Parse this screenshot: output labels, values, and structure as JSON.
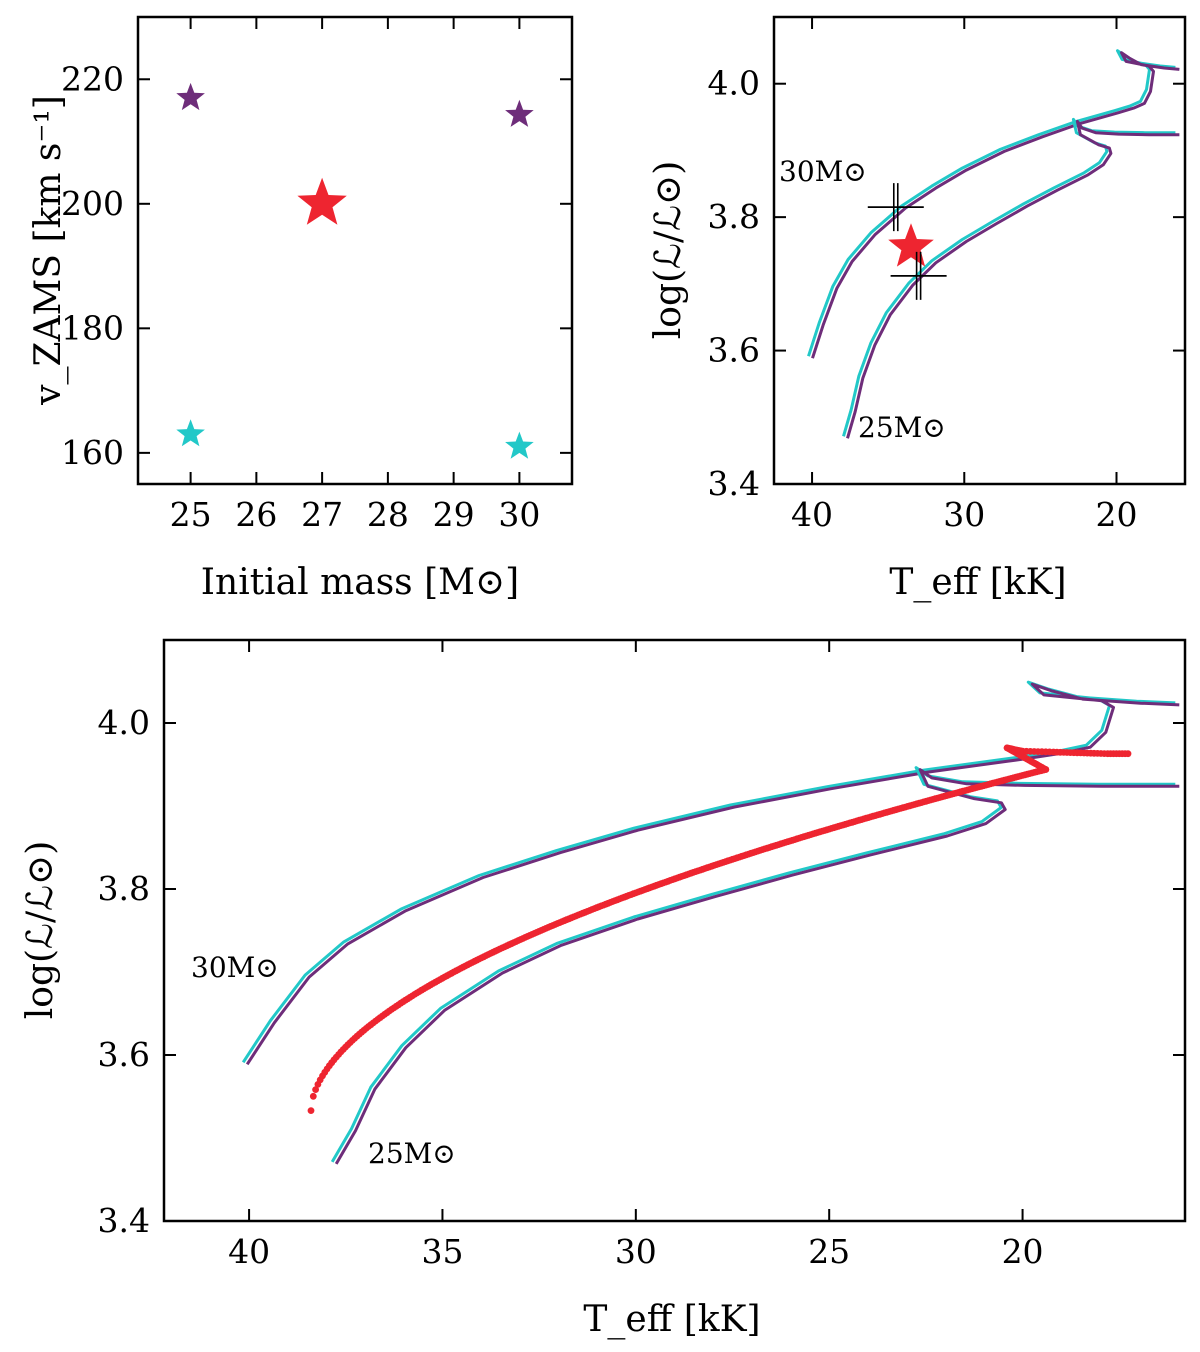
{
  "chart_data": [
    {
      "id": "panel-a",
      "type": "scatter",
      "title": "",
      "xlabel": "Initial mass [M⊙]",
      "ylabel": "v_ZAMS [km s⁻¹]",
      "xlim": [
        24.2,
        30.8
      ],
      "ylim": [
        155,
        230
      ],
      "xticks": [
        25,
        26,
        27,
        28,
        29,
        30
      ],
      "yticks": [
        160,
        180,
        200,
        220
      ],
      "series": [
        {
          "name": "purple models",
          "color": "#6e2d7a",
          "marker": "star",
          "size": "small",
          "points": [
            {
              "x": 25,
              "y": 217
            },
            {
              "x": 30,
              "y": 214.3
            }
          ]
        },
        {
          "name": "cyan models",
          "color": "#22c8c8",
          "marker": "star",
          "size": "small",
          "points": [
            {
              "x": 25,
              "y": 163
            },
            {
              "x": 30,
              "y": 161
            }
          ]
        },
        {
          "name": "interpolated",
          "color": "#ee2530",
          "marker": "star",
          "size": "large",
          "points": [
            {
              "x": 27,
              "y": 200
            }
          ]
        }
      ]
    },
    {
      "id": "panel-b",
      "type": "line",
      "title": "",
      "xlabel": "T_eff [kK]",
      "ylabel": "log(ℒ/ℒ⊙)",
      "xlim": [
        42.5,
        15.5
      ],
      "ylim": [
        3.4,
        4.1
      ],
      "xticks": [
        40,
        30,
        20
      ],
      "yticks": [
        3.4,
        3.6,
        3.8,
        4.0
      ],
      "annotations": [
        {
          "text": "30M⊙",
          "x": 41.8,
          "y": 3.855
        },
        {
          "text": "25M⊙",
          "x": 36.8,
          "y": 3.48
        }
      ],
      "observation": {
        "name": "star",
        "color": "#ee2530",
        "x": 33.5,
        "y": 3.755
      },
      "crosses": [
        {
          "x": 34.5,
          "y": 3.815
        },
        {
          "x": 33.0,
          "y": 3.712
        }
      ]
    },
    {
      "id": "panel-c",
      "type": "line",
      "title": "",
      "xlabel": "T_eff [kK]",
      "ylabel": "log(ℒ/ℒ⊙)",
      "xlim": [
        42.2,
        15.8
      ],
      "ylim": [
        3.4,
        4.1
      ],
      "xticks": [
        40,
        35,
        30,
        25,
        20
      ],
      "yticks": [
        3.4,
        3.6,
        3.8,
        4.0
      ],
      "annotations": [
        {
          "text": "30M⊙",
          "x": 41.9,
          "y": 3.705
        },
        {
          "text": "25M⊙",
          "x": 36.9,
          "y": 3.475
        }
      ],
      "interpolated_track": {
        "name": "interpolated 27M⊙",
        "color": "#ee2530",
        "from": [
          38.4,
          3.533
        ],
        "to": [
          19.4,
          3.944
        ],
        "points": 320
      }
    }
  ],
  "tracks": [
    {
      "name": "30M⊙ track",
      "mass": 30,
      "x": [
        40.1,
        39.4,
        38.5,
        37.5,
        36.0,
        34.0,
        32.0,
        30.0,
        27.5,
        25.0,
        22.5,
        20.0,
        19.0,
        18.3,
        17.9,
        17.7,
        18.0,
        19.5,
        19.8,
        19.3,
        18.5,
        17.0,
        16.0
      ],
      "y": [
        3.59,
        3.64,
        3.695,
        3.735,
        3.775,
        3.815,
        3.845,
        3.872,
        3.9,
        3.922,
        3.942,
        3.958,
        3.965,
        3.972,
        3.99,
        4.02,
        4.028,
        4.035,
        4.048,
        4.04,
        4.03,
        4.025,
        4.023
      ]
    },
    {
      "name": "25M⊙ track",
      "mass": 25,
      "x": [
        37.8,
        37.3,
        36.8,
        36.0,
        35.0,
        33.5,
        32.0,
        30.0,
        28.0,
        26.0,
        24.0,
        22.0,
        21.0,
        20.5,
        20.6,
        21.3,
        22.5,
        22.7,
        22.4,
        21.5,
        20.0,
        18.0,
        16.0
      ],
      "y": [
        3.47,
        3.51,
        3.56,
        3.61,
        3.655,
        3.7,
        3.733,
        3.765,
        3.792,
        3.818,
        3.842,
        3.865,
        3.88,
        3.897,
        3.905,
        3.91,
        3.925,
        3.945,
        3.935,
        3.928,
        3.926,
        3.925,
        3.925
      ]
    },
    {
      "name": "interpolated tail",
      "mass": 27,
      "x": [
        20.4,
        20.0,
        19.2,
        18.5,
        17.8,
        17.2
      ],
      "y": [
        3.97,
        3.966,
        3.965,
        3.964,
        3.963,
        3.963
      ]
    }
  ],
  "colors": {
    "purple": "#6e2d7a",
    "cyan": "#22c8c8",
    "red": "#ee2530",
    "axis": "#000000"
  }
}
